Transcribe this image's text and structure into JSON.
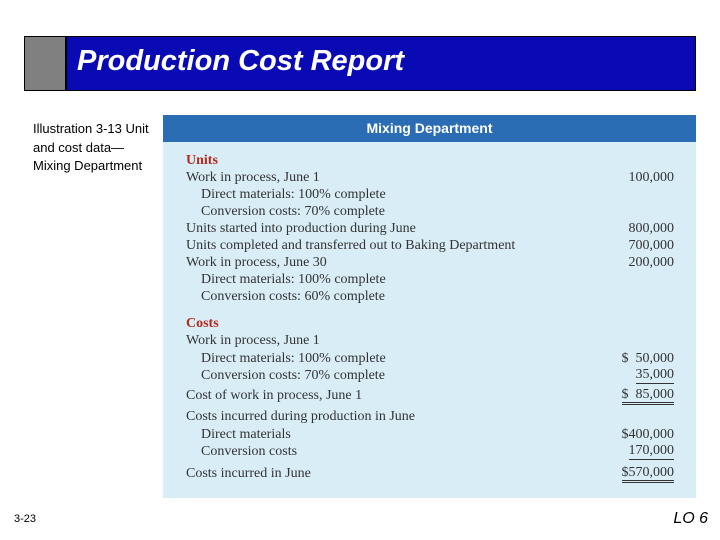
{
  "slide": {
    "title": "Production Cost Report",
    "caption": "Illustration 3-13 Unit and cost data—Mixing Department",
    "page_number": "3-23",
    "lo_label": "LO 6"
  },
  "table": {
    "header": "Mixing Department",
    "rows": [
      {
        "label": "Units",
        "value": "",
        "style": "heading"
      },
      {
        "label": "Work in process, June 1",
        "value": "100,000",
        "style": "normal"
      },
      {
        "label": "Direct materials: 100% complete",
        "value": "",
        "style": "indent"
      },
      {
        "label": "Conversion costs: 70% complete",
        "value": "",
        "style": "indent"
      },
      {
        "label": "Units started into production during June",
        "value": "800,000",
        "style": "normal"
      },
      {
        "label": "Units completed and transferred out to Baking Department",
        "value": "700,000",
        "style": "normal"
      },
      {
        "label": "Work in process, June 30",
        "value": "200,000",
        "style": "normal"
      },
      {
        "label": "Direct materials: 100% complete",
        "value": "",
        "style": "indent"
      },
      {
        "label": "Conversion costs: 60% complete",
        "value": "",
        "style": "indent"
      },
      {
        "label": "Costs",
        "value": "",
        "style": "heading"
      },
      {
        "label": "Work in process, June 1",
        "value": "",
        "style": "normal"
      },
      {
        "label": "Direct materials: 100% complete",
        "value": "$  50,000",
        "style": "indent"
      },
      {
        "label": "Conversion costs: 70% complete",
        "value": "35,000",
        "style": "indent",
        "rule": "single"
      },
      {
        "label": "Cost of work in process, June 1",
        "value": "$  85,000",
        "style": "normal",
        "rule": "double"
      },
      {
        "label": "Costs incurred during production in June",
        "value": "",
        "style": "normal"
      },
      {
        "label": "Direct materials",
        "value": "$400,000",
        "style": "indent"
      },
      {
        "label": "Conversion costs",
        "value": "170,000",
        "style": "indent",
        "rule": "single"
      },
      {
        "label": "Costs incurred in June",
        "value": "$570,000",
        "style": "normal",
        "rule": "double"
      }
    ]
  },
  "colors": {
    "title_bar": "#0a0ab4",
    "panel_header": "#2a6db5",
    "panel_background": "#d9edf7",
    "heading_text": "#b32a1a"
  }
}
